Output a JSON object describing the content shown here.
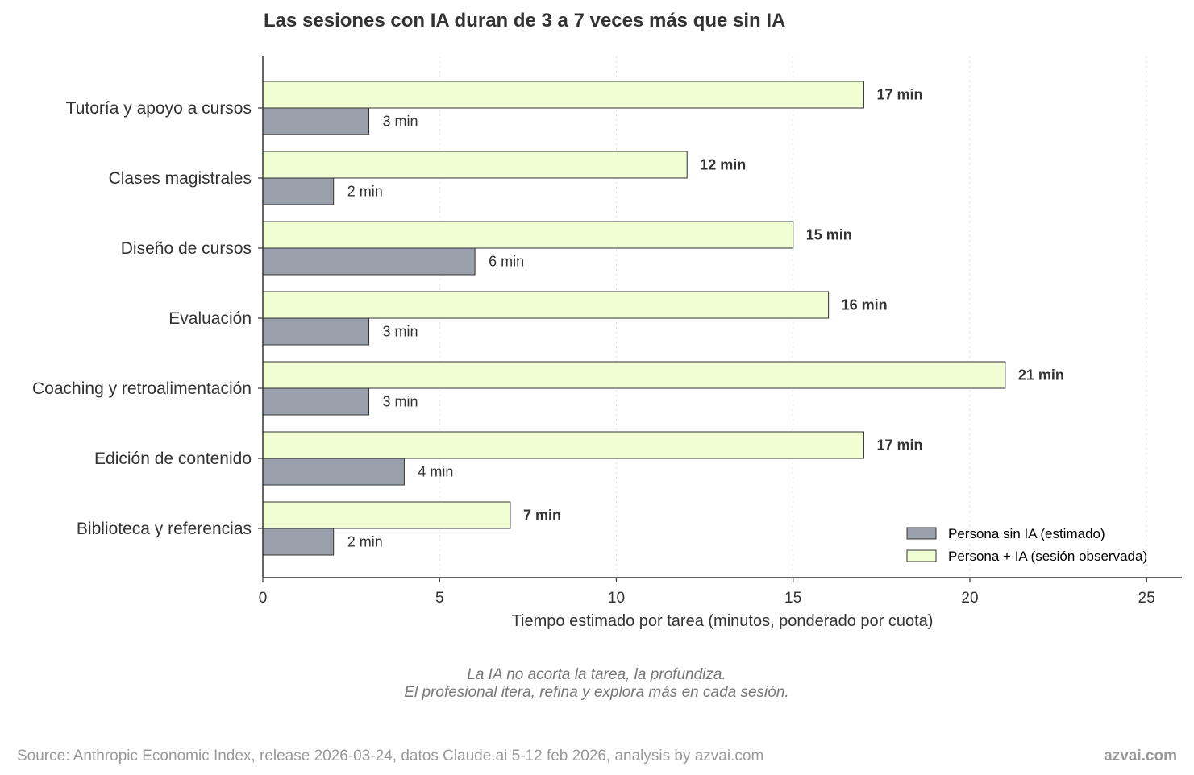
{
  "chart_data": {
    "type": "bar",
    "orientation": "horizontal",
    "title": "Las sesiones con IA duran de 3 a 7 veces más que sin IA",
    "xlabel": "Tiempo estimado por tarea (minutos, ponderado por cuota)",
    "ylabel": "",
    "xlim": [
      0,
      26
    ],
    "xticks": [
      0,
      5,
      10,
      15,
      20,
      25
    ],
    "grid": "x, dotted",
    "legend_position": "lower-right",
    "categories": [
      "Tutoría y apoyo a cursos",
      "Clases magistrales",
      "Diseño de cursos",
      "Evaluación",
      "Coaching y retroalimentación",
      "Edición de contenido",
      "Biblioteca y referencias"
    ],
    "series": [
      {
        "name": "Persona sin IA (estimado)",
        "color": "#9aa0ab",
        "values": [
          3,
          2,
          6,
          3,
          3,
          4,
          2
        ],
        "labels": [
          "3 min",
          "2 min",
          "6 min",
          "3 min",
          "3 min",
          "4 min",
          "2 min"
        ]
      },
      {
        "name": "Persona + IA (sesión observada)",
        "color": "#f1fdd2",
        "values": [
          17,
          12,
          15,
          16,
          21,
          17,
          7
        ],
        "labels": [
          "17 min",
          "12 min",
          "15 min",
          "16 min",
          "21 min",
          "17 min",
          "7 min"
        ]
      }
    ],
    "annotation": [
      "La IA no acorta la tarea, la profundiza.",
      "El profesional itera, refina y explora más en cada sesión."
    ]
  },
  "footer": {
    "source": "Source: Anthropic Economic Index, release 2026-03-24, datos Claude.ai 5-12 feb 2026, analysis by azvai.com",
    "brand": "azvai.com"
  }
}
